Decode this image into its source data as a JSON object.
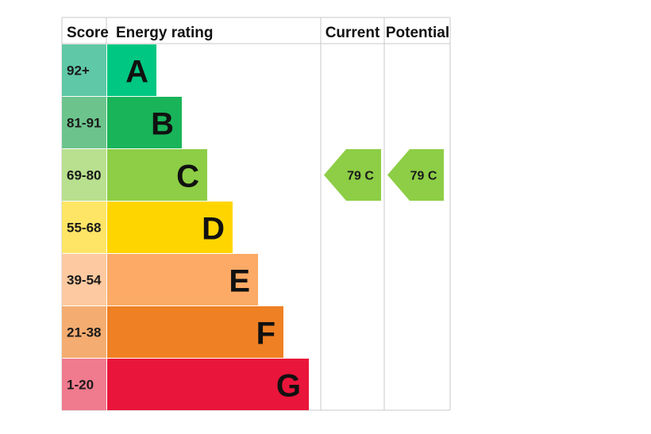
{
  "headers": {
    "score": "Score",
    "energy_rating": "Energy rating",
    "current": "Current",
    "potential": "Potential"
  },
  "colors": {
    "grid": "#c8c8c8",
    "A": "#00c781",
    "B": "#19b459",
    "C": "#8dce46",
    "D": "#ffd500",
    "E": "#fcaa65",
    "F": "#ef8023",
    "G": "#e9153b",
    "score_A": "#5fc8a6",
    "score_B": "#6cc48c",
    "score_C": "#b8e08e",
    "score_D": "#ffe566",
    "score_E": "#fdc9a0",
    "score_F": "#f4ac70",
    "score_G": "#f07a8e"
  },
  "chart_data": {
    "type": "table",
    "bands": [
      {
        "letter": "A",
        "score": "92+"
      },
      {
        "letter": "B",
        "score": "81-91"
      },
      {
        "letter": "C",
        "score": "69-80"
      },
      {
        "letter": "D",
        "score": "55-68"
      },
      {
        "letter": "E",
        "score": "39-54"
      },
      {
        "letter": "F",
        "score": "21-38"
      },
      {
        "letter": "G",
        "score": "1-20"
      }
    ],
    "current": {
      "value": 79,
      "band": "C",
      "label": "79 C"
    },
    "potential": {
      "value": 79,
      "band": "C",
      "label": "79 C"
    }
  }
}
